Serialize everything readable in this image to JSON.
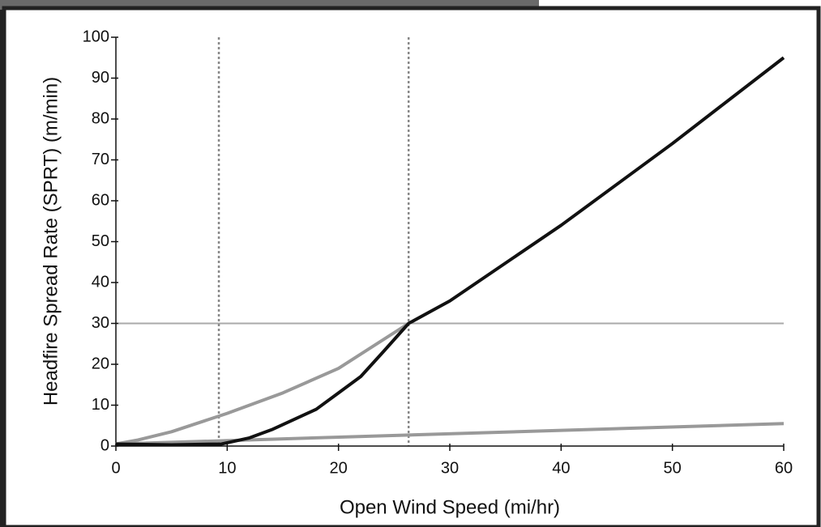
{
  "chart_data": {
    "type": "line",
    "x_label": "Open Wind Speed (mi/hr)",
    "y_label": "Headfire Spread Rate (SPRT) (m/min)",
    "xlim": [
      0,
      60
    ],
    "xticks": [
      0,
      10,
      20,
      30,
      40,
      50,
      60
    ],
    "ylim": [
      0,
      100
    ],
    "yticks": [
      0,
      10,
      20,
      30,
      40,
      50,
      60,
      70,
      80,
      90,
      100
    ],
    "vlines": [
      9.25,
      26.3
    ],
    "hlines": [
      30
    ],
    "series": [
      {
        "color": "#999999",
        "x": [
          0,
          2,
          5,
          10,
          15,
          20,
          26.3
        ],
        "values": [
          0.5,
          1.5,
          3.5,
          8,
          13,
          19,
          30
        ]
      },
      {
        "color": "#999999",
        "x": [
          0,
          60
        ],
        "values": [
          0.5,
          5.5
        ]
      },
      {
        "color": "#111111",
        "x": [
          0,
          5,
          9.5,
          10,
          12,
          14,
          16,
          18,
          20,
          22,
          24,
          26.3,
          30,
          40,
          50,
          60
        ],
        "values": [
          0.5,
          0.3,
          0.5,
          0.8,
          2,
          4,
          6.5,
          9,
          13,
          17,
          23,
          30,
          35.5,
          54,
          74,
          95
        ]
      }
    ]
  }
}
